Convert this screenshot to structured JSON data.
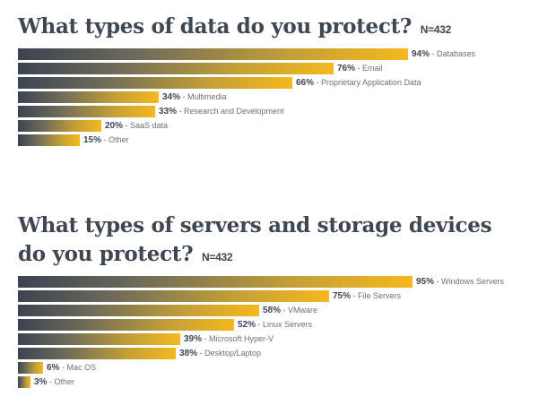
{
  "chart_data": [
    {
      "type": "bar",
      "orientation": "horizontal",
      "title": "What types of data do you protect?",
      "sample_size": "N=432",
      "value_suffix": "%",
      "categories": [
        "Databases",
        "Email",
        "Proprietary Application Data",
        "Multimedia",
        "Research and Development",
        "SaaS data",
        "Other"
      ],
      "values": [
        94,
        76,
        66,
        34,
        33,
        20,
        15
      ],
      "xlim": [
        0,
        100
      ]
    },
    {
      "type": "bar",
      "orientation": "horizontal",
      "title_line1": "What types of servers and storage devices",
      "title_line2": "do you protect?",
      "sample_size": "N=432",
      "value_suffix": "%",
      "categories": [
        "Windows Servers",
        "File Servers",
        "VMware",
        "Linux Servers",
        "Microsoft Hyper-V",
        "Desktop/Laptop",
        "Mac OS",
        "Other"
      ],
      "values": [
        95,
        75,
        58,
        52,
        39,
        38,
        6,
        3
      ],
      "xlim": [
        0,
        100
      ]
    }
  ],
  "colors": {
    "bar_start": "#3b4452",
    "bar_end": "#f5b81d",
    "text_dark": "#3e4752",
    "text_muted": "#6b7079"
  }
}
